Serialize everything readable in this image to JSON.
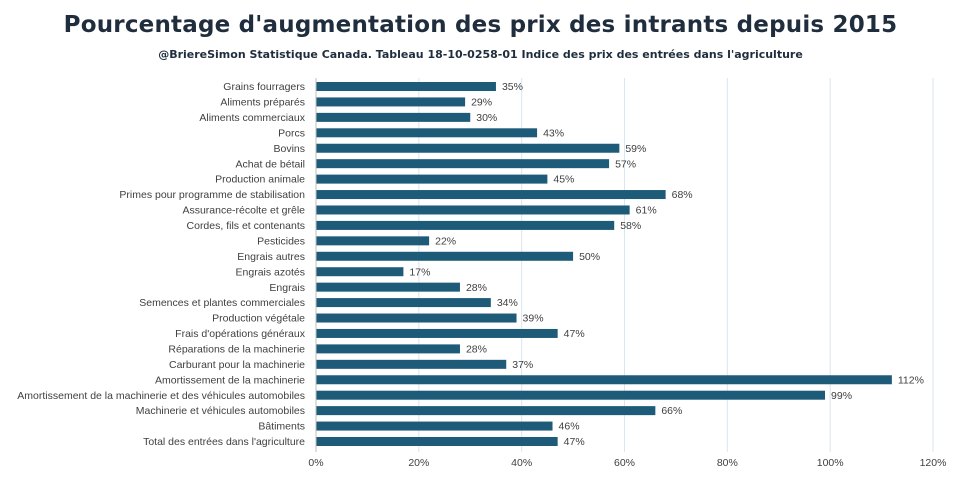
{
  "chart_data": {
    "type": "bar",
    "orientation": "horizontal",
    "title": "Pourcentage d'augmentation  des prix des intrants  depuis 2015",
    "subtitle": "@BriereSimon  Statistique  Canada.  Tableau 18-10-0258-01  Indice des prix des entrées dans l'agriculture",
    "categories": [
      "Grains fourragers",
      "Aliments préparés",
      "Aliments commerciaux",
      "Porcs",
      "Bovins",
      "Achat de bétail",
      "Production animale",
      "Primes pour programme de stabilisation",
      "Assurance-récolte et grêle",
      "Cordes, fils et contenants",
      "Pesticides",
      "Engrais autres",
      "Engrais azotés",
      "Engrais",
      "Semences et plantes commerciales",
      "Production végétale",
      "Frais d'opérations généraux",
      "Réparations de la machinerie",
      "Carburant pour la machinerie",
      "Amortissement de la machinerie",
      "Amortissement de la machinerie et des véhicules automobiles",
      "Machinerie et véhicules automobiles",
      "Bâtiments",
      "Total des entrées dans l'agriculture"
    ],
    "values": [
      35,
      29,
      30,
      43,
      59,
      57,
      45,
      68,
      61,
      58,
      22,
      50,
      17,
      28,
      34,
      39,
      47,
      28,
      37,
      112,
      99,
      66,
      46,
      47
    ],
    "value_labels": [
      "35%",
      "29%",
      "30%",
      "43%",
      "59%",
      "57%",
      "45%",
      "68%",
      "61%",
      "58%",
      "22%",
      "50%",
      "17%",
      "28%",
      "34%",
      "39%",
      "47%",
      "28%",
      "37%",
      "112%",
      "99%",
      "66%",
      "46%",
      "47%"
    ],
    "xlim": [
      0,
      120
    ],
    "xticks": [
      0,
      20,
      40,
      60,
      80,
      100,
      120
    ],
    "xtick_labels": [
      "0%",
      "20%",
      "40%",
      "60%",
      "80%",
      "100%",
      "120%"
    ],
    "grid": true,
    "legend": "none",
    "bar_color": "#1e5b78",
    "xlabel": "",
    "ylabel": ""
  }
}
